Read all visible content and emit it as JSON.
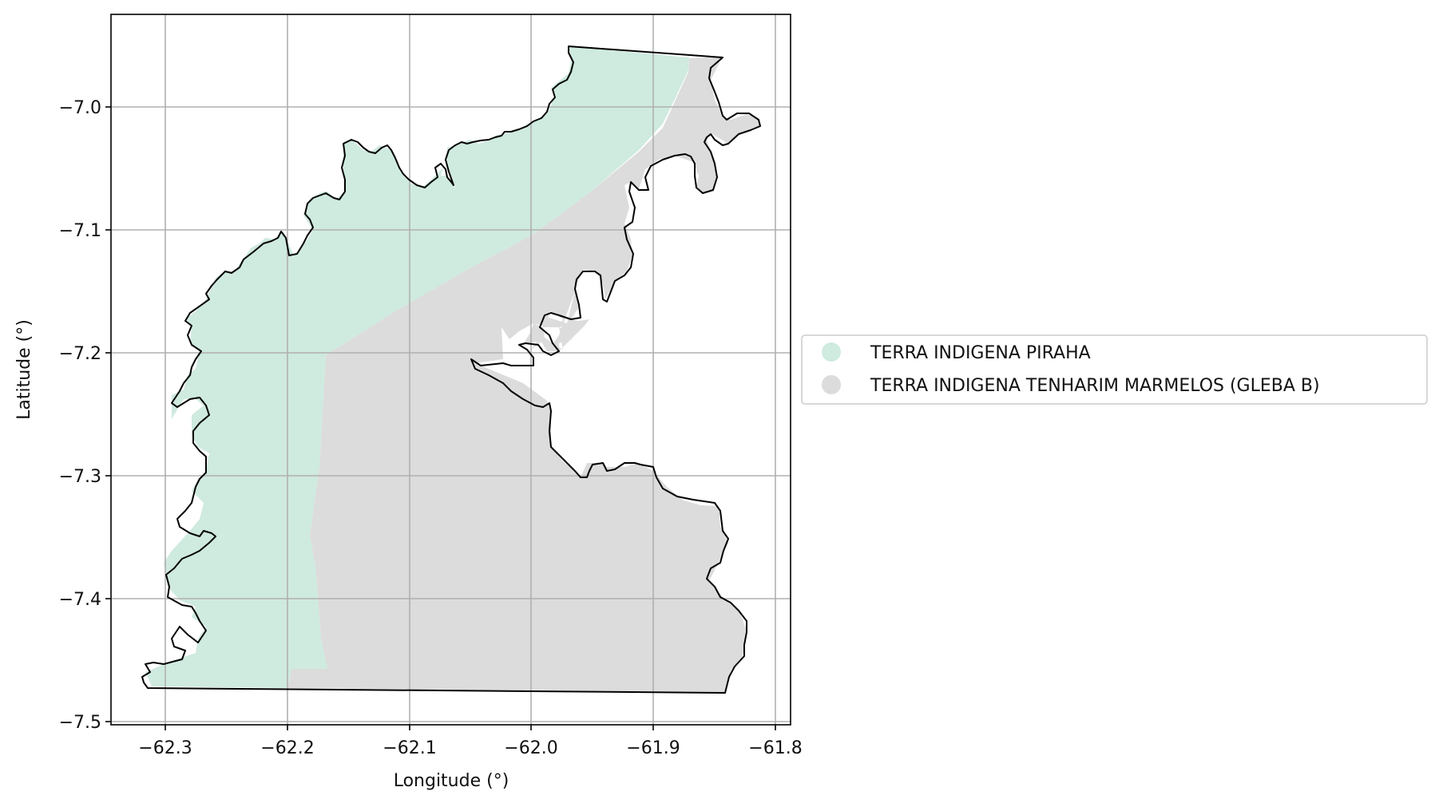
{
  "map": {
    "xlabel": "Longitude (°)",
    "ylabel": "Latitude (°)",
    "x_ticks": [
      "−62.3",
      "−62.2",
      "−62.1",
      "−62.0",
      "−61.9",
      "−61.8"
    ],
    "y_ticks": [
      "−7.0",
      "−7.1",
      "−7.2",
      "−7.3",
      "−7.4",
      "−7.5"
    ],
    "grid": true,
    "legend_position": "right"
  },
  "legend": {
    "items": [
      {
        "label": "TERRA INDIGENA PIRAHA",
        "color": "#cfeadf"
      },
      {
        "label": "TERRA INDIGENA TENHARIM MARMELOS (GLEBA B)",
        "color": "#dcdcdc"
      }
    ]
  },
  "style": {
    "boundary_color": "#000000",
    "grid_color": "#b0b0b0"
  }
}
